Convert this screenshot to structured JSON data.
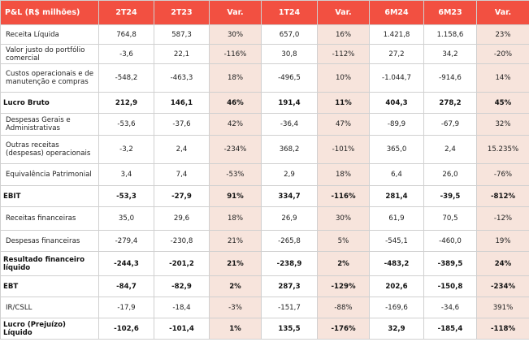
{
  "table": {
    "headers": [
      "P&L (R$ milhões)",
      "2T24",
      "2T23",
      "Var.",
      "1T24",
      "Var.",
      "6M24",
      "6M23",
      "Var."
    ],
    "rows": [
      {
        "label": "Receita Líquida",
        "values": [
          "764,8",
          "587,3",
          "30%",
          "657,0",
          "16%",
          "1.421,8",
          "1.158,6",
          "23%"
        ],
        "bold": false
      },
      {
        "label": "Valor justo do portfólio comercial",
        "values": [
          "-3,6",
          "22,1",
          "-116%",
          "30,8",
          "-112%",
          "27,2",
          "34,2",
          "-20%"
        ],
        "bold": false
      },
      {
        "label": "Custos operacionais e de manutenção e compras",
        "values": [
          "-548,2",
          "-463,3",
          "18%",
          "-496,5",
          "10%",
          "-1.044,7",
          "-914,6",
          "14%"
        ],
        "bold": false
      },
      {
        "label": "Lucro Bruto",
        "values": [
          "212,9",
          "146,1",
          "46%",
          "191,4",
          "11%",
          "404,3",
          "278,2",
          "45%"
        ],
        "bold": true
      },
      {
        "label": "Despesas Gerais e Administrativas",
        "values": [
          "-53,6",
          "-37,6",
          "42%",
          "-36,4",
          "47%",
          "-89,9",
          "-67,9",
          "32%"
        ],
        "bold": false
      },
      {
        "label": "Outras receitas (despesas) operacionais",
        "values": [
          "-3,2",
          "2,4",
          "-234%",
          "368,2",
          "-101%",
          "365,0",
          "2,4",
          "15.235%"
        ],
        "bold": false
      },
      {
        "label": "Equivalência Patrimonial",
        "values": [
          "3,4",
          "7,4",
          "-53%",
          "2,9",
          "18%",
          "6,4",
          "26,0",
          "-76%"
        ],
        "bold": false
      },
      {
        "label": "EBIT",
        "values": [
          "-53,3",
          "-27,9",
          "91%",
          "334,7",
          "-116%",
          "281,4",
          "-39,5",
          "-812%"
        ],
        "bold": true
      },
      {
        "label": "Receitas financeiras",
        "values": [
          "35,0",
          "29,6",
          "18%",
          "26,9",
          "30%",
          "61,9",
          "70,5",
          "-12%"
        ],
        "bold": false
      },
      {
        "label": "Despesas financeiras",
        "values": [
          "-279,4",
          "-230,8",
          "21%",
          "-265,8",
          "5%",
          "-545,1",
          "-460,0",
          "19%"
        ],
        "bold": false
      },
      {
        "label": "Resultado financeiro líquido",
        "values": [
          "-244,3",
          "-201,2",
          "21%",
          "-238,9",
          "2%",
          "-483,2",
          "-389,5",
          "24%"
        ],
        "bold": true
      },
      {
        "label": "EBT",
        "values": [
          "-84,7",
          "-82,9",
          "2%",
          "287,3",
          "-129%",
          "202,6",
          "-150,8",
          "-234%"
        ],
        "bold": true
      },
      {
        "label": "IR/CSLL",
        "values": [
          "-17,9",
          "-18,4",
          "-3%",
          "-151,7",
          "-88%",
          "-169,6",
          "-34,6",
          "391%"
        ],
        "bold": false
      },
      {
        "label": "Lucro (Prejuízo) Líquido",
        "values": [
          "-102,6",
          "-101,4",
          "1%",
          "135,5",
          "-176%",
          "32,9",
          "-185,4",
          "-118%"
        ],
        "bold": true
      }
    ]
  },
  "colors": {
    "header_bg": "#f25041",
    "header_text": "#ffffff",
    "variation_column_bg": "#f7e4dc",
    "grid": "#d0d0d0"
  }
}
